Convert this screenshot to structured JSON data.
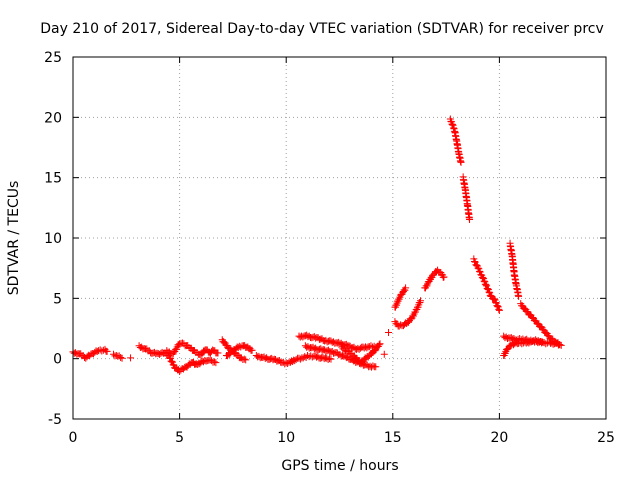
{
  "chart_data": {
    "type": "scatter",
    "title": "Day 210 of 2017, Sidereal Day-to-day VTEC variation (SDTVAR) for receiver prcv",
    "xlabel": "GPS time / hours",
    "ylabel": "SDTVAR / TECUs",
    "xlim": [
      0,
      25
    ],
    "ylim": [
      -5,
      25
    ],
    "x_ticks": [
      0,
      5,
      10,
      15,
      20,
      25
    ],
    "y_ticks": [
      -5,
      0,
      5,
      10,
      15,
      20,
      25
    ],
    "x_tick_labels": [
      "0",
      "5",
      "10",
      "15",
      "20",
      "25"
    ],
    "y_tick_labels": [
      "-5",
      "0",
      "5",
      "10",
      "15",
      "20",
      "25"
    ],
    "grid": true,
    "marker": "+",
    "color": "#ff0000",
    "series": [
      {
        "name": "SDTVAR",
        "segments": [
          [
            [
              0.0,
              0.5
            ],
            [
              0.3,
              0.4
            ],
            [
              0.6,
              0.1
            ],
            [
              0.9,
              0.4
            ],
            [
              1.2,
              0.7
            ],
            [
              1.5,
              0.7
            ],
            [
              1.6,
              0.6
            ]
          ],
          [
            [
              1.9,
              0.3
            ],
            [
              2.1,
              0.2
            ],
            [
              2.3,
              0.1
            ]
          ],
          [
            [
              2.7,
              0.0
            ]
          ],
          [
            [
              3.1,
              1.0
            ],
            [
              3.4,
              0.8
            ],
            [
              3.7,
              0.5
            ],
            [
              4.0,
              0.4
            ],
            [
              4.3,
              0.5
            ],
            [
              4.5,
              0.2
            ],
            [
              4.8,
              -0.8
            ],
            [
              5.0,
              -1.0
            ],
            [
              5.3,
              -0.7
            ],
            [
              5.6,
              -0.3
            ],
            [
              5.8,
              -0.5
            ],
            [
              6.0,
              -0.3
            ],
            [
              6.3,
              -0.1
            ],
            [
              6.5,
              -0.2
            ],
            [
              6.7,
              -0.3
            ]
          ],
          [
            [
              4.4,
              0.6
            ],
            [
              4.7,
              0.4
            ],
            [
              5.0,
              1.3
            ],
            [
              5.2,
              1.2
            ],
            [
              5.5,
              0.9
            ],
            [
              5.7,
              0.6
            ],
            [
              6.0,
              0.3
            ],
            [
              6.2,
              0.8
            ],
            [
              6.4,
              0.5
            ],
            [
              6.6,
              0.7
            ],
            [
              6.8,
              0.4
            ]
          ],
          [
            [
              7.0,
              1.5
            ],
            [
              7.1,
              1.3
            ],
            [
              7.3,
              0.9
            ],
            [
              7.5,
              0.6
            ],
            [
              7.7,
              0.3
            ],
            [
              7.9,
              0.0
            ],
            [
              8.1,
              -0.1
            ]
          ],
          [
            [
              7.2,
              0.2
            ],
            [
              7.4,
              0.5
            ],
            [
              7.6,
              0.8
            ],
            [
              7.8,
              1.0
            ],
            [
              8.0,
              1.1
            ],
            [
              8.2,
              0.9
            ],
            [
              8.4,
              0.7
            ]
          ],
          [
            [
              8.6,
              0.2
            ],
            [
              8.9,
              0.1
            ],
            [
              9.2,
              0.0
            ],
            [
              9.5,
              -0.1
            ],
            [
              9.8,
              -0.3
            ],
            [
              10.0,
              -0.4
            ],
            [
              10.2,
              -0.3
            ],
            [
              10.4,
              -0.1
            ],
            [
              10.6,
              0.0
            ],
            [
              10.8,
              0.1
            ],
            [
              11.0,
              0.2
            ],
            [
              11.3,
              0.2
            ],
            [
              11.6,
              0.1
            ],
            [
              11.9,
              0.0
            ],
            [
              12.1,
              0.0
            ]
          ],
          [
            [
              10.6,
              1.8
            ],
            [
              10.9,
              1.9
            ],
            [
              11.2,
              1.8
            ],
            [
              11.5,
              1.7
            ],
            [
              11.8,
              1.5
            ],
            [
              12.1,
              1.4
            ],
            [
              12.4,
              1.3
            ],
            [
              12.7,
              1.2
            ],
            [
              13.0,
              1.0
            ],
            [
              13.3,
              0.8
            ],
            [
              13.6,
              0.9
            ],
            [
              13.9,
              1.0
            ],
            [
              14.2,
              1.0
            ]
          ],
          [
            [
              10.9,
              1.0
            ],
            [
              11.2,
              0.9
            ],
            [
              11.5,
              0.8
            ],
            [
              11.8,
              0.7
            ],
            [
              12.1,
              0.6
            ],
            [
              12.4,
              0.4
            ],
            [
              12.7,
              0.2
            ],
            [
              13.0,
              0.0
            ],
            [
              13.2,
              -0.2
            ],
            [
              13.5,
              -0.4
            ],
            [
              13.8,
              -0.6
            ],
            [
              14.0,
              -0.7
            ],
            [
              14.2,
              -0.6
            ]
          ],
          [
            [
              12.6,
              0.9
            ],
            [
              12.9,
              0.6
            ],
            [
              13.1,
              0.3
            ],
            [
              13.3,
              0.0
            ],
            [
              13.5,
              -0.3
            ],
            [
              13.7,
              0.0
            ],
            [
              14.0,
              0.4
            ],
            [
              14.2,
              0.8
            ],
            [
              14.4,
              1.2
            ]
          ],
          [
            [
              14.6,
              0.3
            ]
          ],
          [
            [
              14.8,
              2.1
            ]
          ],
          [
            [
              15.1,
              4.2
            ],
            [
              15.2,
              4.6
            ],
            [
              15.3,
              5.0
            ],
            [
              15.4,
              5.3
            ],
            [
              15.5,
              5.6
            ],
            [
              15.6,
              5.8
            ]
          ],
          [
            [
              15.1,
              3.0
            ],
            [
              15.3,
              2.7
            ],
            [
              15.5,
              2.8
            ],
            [
              15.7,
              3.0
            ],
            [
              15.9,
              3.4
            ],
            [
              16.1,
              4.0
            ],
            [
              16.3,
              4.8
            ]
          ],
          [
            [
              16.5,
              5.8
            ],
            [
              16.7,
              6.4
            ],
            [
              16.9,
              7.0
            ],
            [
              17.1,
              7.3
            ],
            [
              17.3,
              7.0
            ],
            [
              17.4,
              6.7
            ]
          ],
          [
            [
              17.7,
              19.8
            ],
            [
              17.8,
              19.4
            ],
            [
              17.9,
              18.9
            ],
            [
              18.0,
              18.0
            ],
            [
              18.1,
              17.0
            ],
            [
              18.2,
              16.2
            ]
          ],
          [
            [
              18.3,
              15.0
            ],
            [
              18.4,
              14.0
            ],
            [
              18.5,
              12.8
            ],
            [
              18.6,
              11.5
            ]
          ],
          [
            [
              18.8,
              8.2
            ],
            [
              19.0,
              7.5
            ],
            [
              19.2,
              6.8
            ],
            [
              19.4,
              6.0
            ],
            [
              19.6,
              5.2
            ],
            [
              19.8,
              4.8
            ],
            [
              20.0,
              4.0
            ]
          ],
          [
            [
              20.2,
              0.2
            ],
            [
              20.3,
              0.6
            ],
            [
              20.4,
              0.9
            ],
            [
              20.6,
              1.2
            ],
            [
              20.9,
              1.3
            ],
            [
              21.2,
              1.3
            ],
            [
              21.5,
              1.4
            ],
            [
              21.8,
              1.4
            ],
            [
              22.1,
              1.3
            ],
            [
              22.4,
              1.3
            ],
            [
              22.7,
              1.2
            ],
            [
              22.9,
              1.1
            ]
          ],
          [
            [
              20.2,
              1.8
            ],
            [
              20.5,
              1.7
            ],
            [
              20.8,
              1.6
            ],
            [
              21.1,
              1.6
            ],
            [
              21.4,
              1.5
            ],
            [
              21.7,
              1.5
            ],
            [
              22.0,
              1.4
            ]
          ],
          [
            [
              20.5,
              9.5
            ],
            [
              20.6,
              8.5
            ],
            [
              20.7,
              7.0
            ],
            [
              20.8,
              6.0
            ],
            [
              20.9,
              5.2
            ]
          ],
          [
            [
              21.0,
              4.5
            ],
            [
              21.2,
              4.1
            ],
            [
              21.4,
              3.7
            ],
            [
              21.6,
              3.3
            ],
            [
              21.8,
              2.9
            ],
            [
              22.0,
              2.5
            ],
            [
              22.2,
              2.1
            ],
            [
              22.4,
              1.7
            ],
            [
              22.6,
              1.4
            ],
            [
              22.8,
              1.2
            ]
          ]
        ]
      }
    ]
  }
}
